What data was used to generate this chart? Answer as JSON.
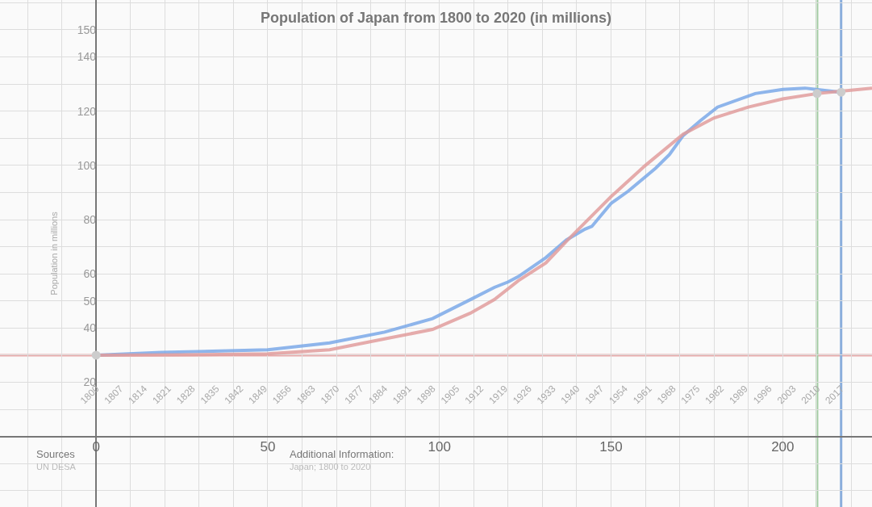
{
  "chart_data": {
    "type": "line",
    "title": "Population of Japan from 1800 to 2020 (in millions)",
    "ylabel": "Population in millions",
    "annotations": [
      "Sources",
      "UN DESA",
      "Additional Information:",
      "Japan; 1800 to 2020"
    ],
    "xlim": [
      -28,
      226
    ],
    "ylim": [
      -26,
      161
    ],
    "xticks": [
      {
        "value": -20,
        "label": null
      },
      {
        "value": -10,
        "label": null
      },
      0,
      {
        "value": 10,
        "label": null
      },
      {
        "value": 20,
        "label": null
      },
      {
        "value": 30,
        "label": null
      },
      {
        "value": 40,
        "label": null
      },
      50,
      {
        "value": 60,
        "label": null
      },
      {
        "value": 70,
        "label": null
      },
      {
        "value": 80,
        "label": null
      },
      {
        "value": 90,
        "label": null
      },
      100,
      {
        "value": 110,
        "label": null
      },
      {
        "value": 120,
        "label": null
      },
      {
        "value": 130,
        "label": null
      },
      {
        "value": 140,
        "label": null
      },
      150,
      {
        "value": 160,
        "label": null
      },
      {
        "value": 170,
        "label": null
      },
      {
        "value": 180,
        "label": null
      },
      {
        "value": 190,
        "label": null
      },
      200,
      {
        "value": 210,
        "label": null
      },
      {
        "value": 220,
        "label": null
      }
    ],
    "yticks": [
      {
        "value": -20,
        "label": null
      },
      {
        "value": -10,
        "label": null
      },
      {
        "value": 10,
        "label": null
      },
      20,
      {
        "value": 30,
        "label": null
      },
      40,
      50,
      60,
      {
        "value": 70,
        "label": null
      },
      80,
      {
        "value": 90,
        "label": null
      },
      100,
      {
        "value": 110,
        "label": null
      },
      120,
      {
        "value": 130,
        "label": null
      },
      140,
      150,
      {
        "value": 160,
        "label": null
      }
    ],
    "x2lim": [
      1772,
      2026
    ],
    "x2ticks": [
      1800,
      1807,
      1814,
      1821,
      1828,
      1835,
      1842,
      1849,
      1856,
      1863,
      1870,
      1877,
      1884,
      1891,
      1898,
      1905,
      1912,
      1919,
      1926,
      1933,
      1940,
      1947,
      1954,
      1961,
      1968,
      1975,
      1982,
      1989,
      1996,
      2003,
      2010,
      2017
    ],
    "grid": true,
    "series": [
      {
        "type": "line",
        "color": "#7aa8e8",
        "x": [
          0,
          19,
          50,
          68,
          84,
          98,
          109,
          116,
          120,
          123,
          131,
          137,
          142.4,
          144.4,
          150,
          155,
          163,
          167,
          171,
          176,
          181,
          192,
          200,
          206.5,
          209.7,
          216.7,
          217
        ],
        "values": [
          30,
          31,
          32,
          34.5,
          38.5,
          43.5,
          50.5,
          55,
          57,
          59,
          66,
          72.5,
          76.5,
          77.5,
          86,
          90.5,
          99,
          104,
          111,
          116.5,
          121.5,
          126.5,
          128,
          128.5,
          128,
          127,
          126.5
        ]
      },
      {
        "type": "line",
        "color": "#e09c9c",
        "x": [
          0,
          25,
          50,
          68,
          84,
          98,
          109,
          116,
          123,
          131,
          137,
          150,
          160,
          171,
          180,
          190,
          200,
          210,
          226
        ],
        "values": [
          30,
          30.1,
          30.5,
          32,
          36,
          39.5,
          45.5,
          50.5,
          57.5,
          64,
          72,
          88.5,
          100,
          111.5,
          117.5,
          121.5,
          124.5,
          126.5,
          128.5
        ]
      },
      {
        "type": "scatter",
        "color": "#cccccc",
        "x": [
          0,
          210,
          217
        ],
        "values": [
          30,
          126.5,
          127
        ]
      }
    ],
    "ref_lines": [
      {
        "axis": "y",
        "value": 30,
        "color": "#e8a8a8"
      },
      {
        "axis": "x",
        "value": 210,
        "color": "#9ccc9c"
      },
      {
        "axis": "x",
        "value": 217,
        "color": "#8aaedc"
      }
    ]
  }
}
